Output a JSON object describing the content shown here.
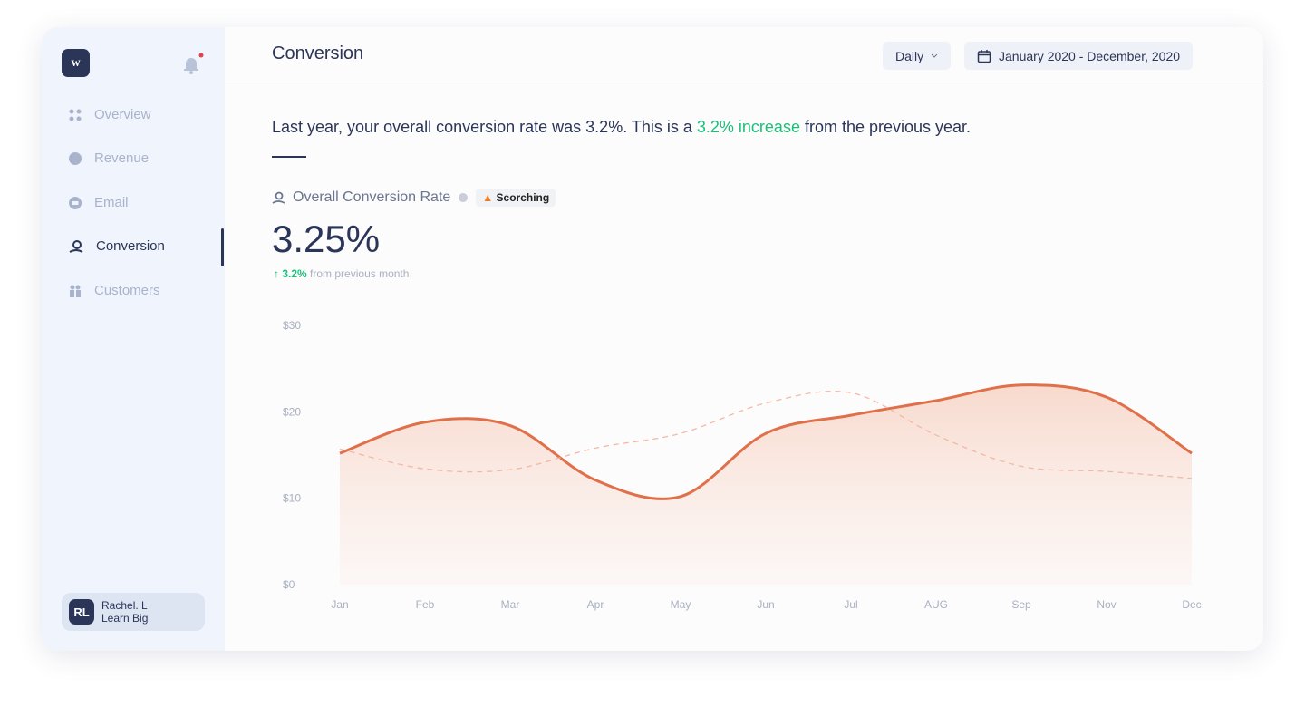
{
  "sidebar": {
    "logo": "w",
    "nav": [
      "Overview",
      "Revenue",
      "Email",
      "Conversion",
      "Customers"
    ],
    "active": 3,
    "user": {
      "initials": "RL",
      "name": "Rachel. L",
      "org": "Learn Big"
    }
  },
  "header": {
    "title": "Conversion",
    "period": "Daily",
    "range": "January 2020 - December, 2020"
  },
  "summary": {
    "before": "Last year, your overall conversion rate was 3.2%. This is a ",
    "highlight": "3.2% increase",
    "after": " from the previous year."
  },
  "kpi": {
    "label": "Overall Conversion Rate",
    "badge": "Scorching",
    "value": "3.25%",
    "change": "3.2%",
    "change_note": "from previous month"
  },
  "chart_data": {
    "type": "line",
    "categories": [
      "Jan",
      "Feb",
      "Mar",
      "Apr",
      "May",
      "Jun",
      "Jul",
      "AUG",
      "Sep",
      "Nov",
      "Dec"
    ],
    "series": [
      {
        "color": "#e0704a",
        "values": [
          15.2,
          18.8,
          18.4,
          12.1,
          10.2,
          17.5,
          19.6,
          21.3,
          23.1,
          21.7,
          15.2
        ]
      },
      {
        "color": "#f2b9a5",
        "dashed": true,
        "values": [
          15.7,
          13.4,
          13.3,
          15.8,
          17.5,
          21.0,
          22.2,
          17.3,
          13.7,
          13.1,
          12.3
        ]
      }
    ],
    "ylim": [
      0,
      30
    ],
    "yticks": [
      {
        "value": 0,
        "label": "$0"
      },
      {
        "value": 10,
        "label": "$10"
      },
      {
        "value": 20,
        "label": "$20"
      },
      {
        "value": 30,
        "label": "$30"
      }
    ]
  }
}
